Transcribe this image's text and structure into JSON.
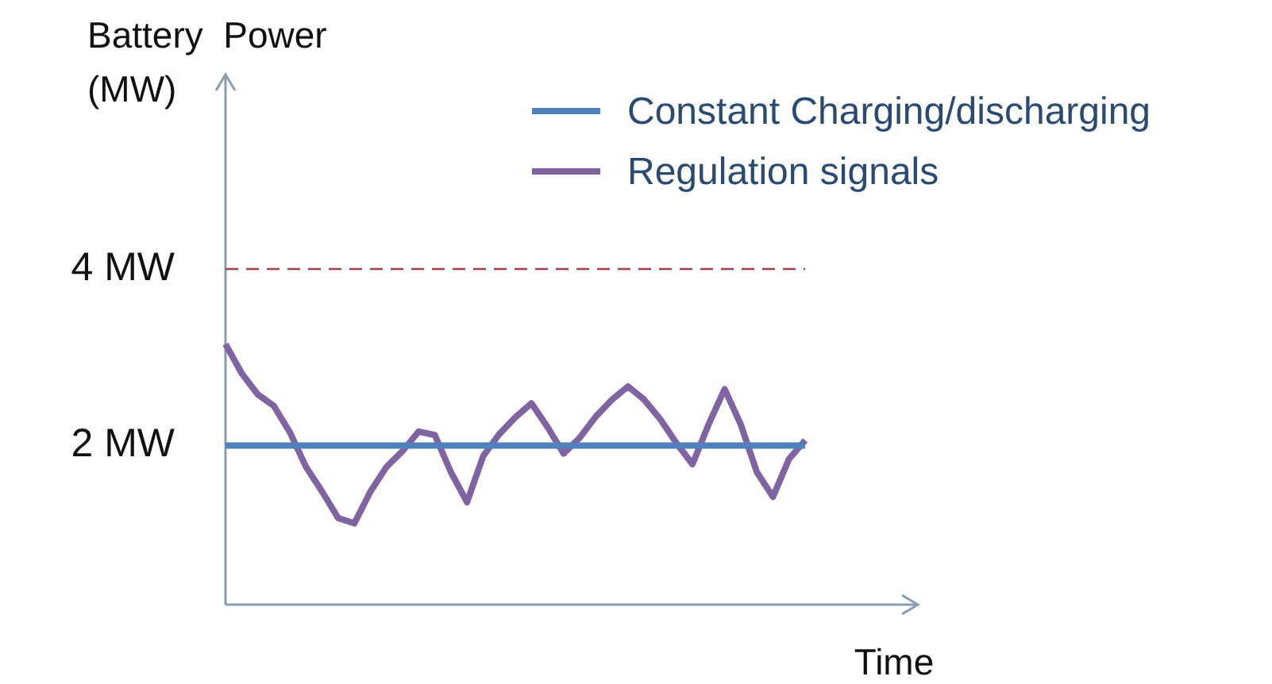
{
  "chart_data": {
    "type": "line",
    "ylabel": "Battery  Power (MW)",
    "xlabel": "Time",
    "categories": [
      null,
      null,
      null,
      null,
      null,
      null,
      null,
      null,
      null,
      null,
      null,
      null,
      null,
      null,
      null,
      null,
      null,
      null,
      null,
      null,
      null,
      null,
      null,
      null,
      null,
      null,
      null,
      null,
      null,
      null,
      null,
      null,
      null,
      null,
      null,
      null,
      null,
      null,
      null,
      null,
      null,
      null,
      null,
      null
    ],
    "series": [
      {
        "name": "Constant Charging/discharging",
        "color": "#4f81bd",
        "values": [
          2,
          2,
          2,
          2,
          2,
          2,
          2,
          2,
          2,
          2,
          2,
          2,
          2,
          2,
          2,
          2,
          2,
          2,
          2,
          2,
          2,
          2,
          2,
          2,
          2,
          2,
          2,
          2,
          2,
          2,
          2,
          2,
          2,
          2,
          2,
          2,
          2,
          null,
          null,
          null,
          null,
          null,
          null,
          null
        ]
      },
      {
        "name": "Regulation signals",
        "color": "#8064a2",
        "values": [
          3.15,
          2.82,
          2.58,
          2.45,
          2.15,
          1.76,
          1.48,
          1.18,
          1.12,
          1.48,
          1.76,
          1.94,
          2.16,
          2.12,
          1.7,
          1.36,
          1.88,
          2.13,
          2.32,
          2.48,
          2.21,
          1.91,
          2.09,
          2.33,
          2.52,
          2.67,
          2.52,
          2.3,
          2.03,
          1.79,
          2.24,
          2.64,
          2.24,
          1.7,
          1.42,
          1.85,
          2.06,
          null,
          null,
          null,
          null,
          null,
          null,
          null
        ]
      }
    ],
    "ylim": [
      0.2,
      6.2
    ],
    "yticks": [
      {
        "value": 2,
        "label": "2 MW"
      },
      {
        "value": 4,
        "label": "4 MW"
      }
    ],
    "ref_lines": [
      {
        "axis": "y",
        "value": 4,
        "label": null,
        "color": "#a0404a",
        "line_style": "dashed"
      }
    ],
    "grid": false,
    "legend": "top right",
    "marker": "none",
    "line_style": "solid"
  }
}
